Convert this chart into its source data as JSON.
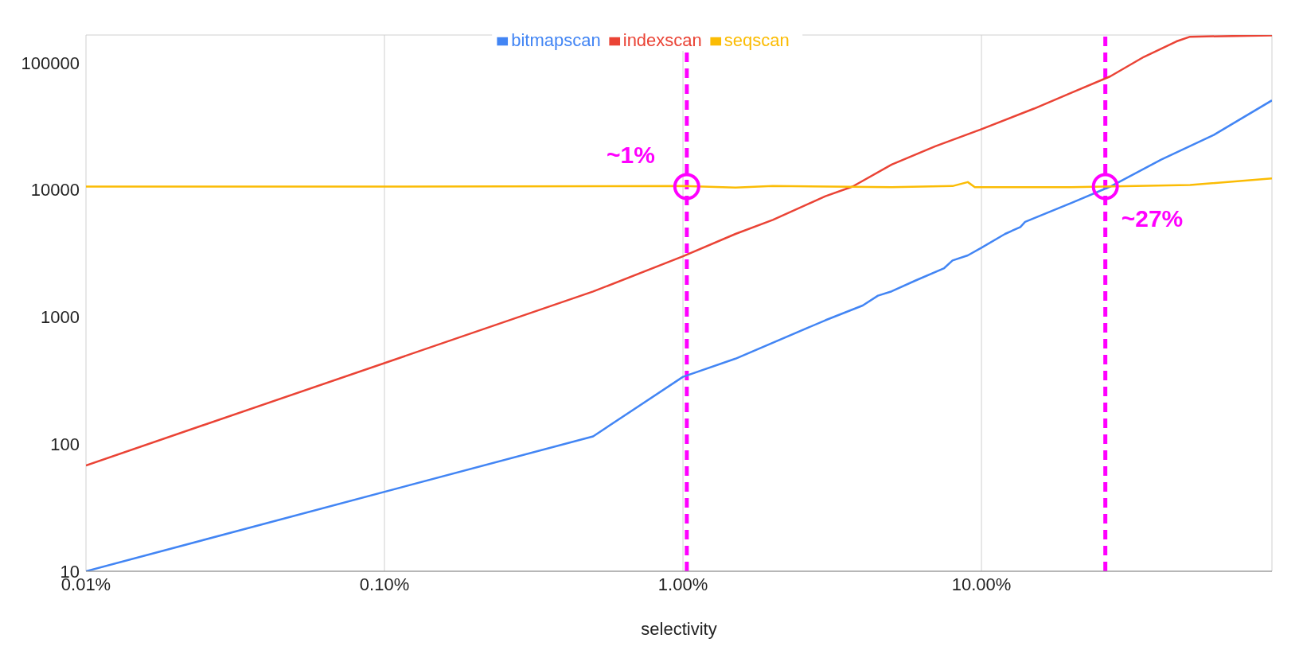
{
  "chart_data": {
    "type": "line",
    "xlabel": "selectivity",
    "log": "xy",
    "grid": true,
    "legend": "top",
    "marker": "none",
    "line_style": "solid",
    "xlim": [
      0.01,
      94
    ],
    "xticks": [
      {
        "value": 0.01,
        "label": "0.01%"
      },
      {
        "value": 0.1,
        "label": "0.10%"
      },
      {
        "value": 1,
        "label": "1.00%"
      },
      {
        "value": 10,
        "label": "10.00%"
      }
    ],
    "ylim": [
      10,
      165000
    ],
    "yticks": [
      10,
      100,
      1000,
      10000,
      100000
    ],
    "series": [
      {
        "name": "bitmapscan",
        "color": "#4285f4",
        "x": [
          0.01,
          0.5,
          1,
          1.5,
          3,
          4,
          4.5,
          5,
          6,
          7.5,
          8,
          9,
          10,
          12,
          13.5,
          14,
          20,
          27,
          40,
          60,
          94
        ],
        "values": [
          10,
          115,
          338,
          470,
          942,
          1230,
          1470,
          1590,
          1930,
          2420,
          2780,
          3050,
          3500,
          4500,
          5100,
          5600,
          7880,
          10600,
          17300,
          27000,
          50500
        ]
      },
      {
        "name": "indexscan",
        "color": "#ea4335",
        "x": [
          0.01,
          0.5,
          1,
          1.5,
          2,
          3,
          3.7,
          5,
          7,
          10,
          15,
          20,
          27,
          35,
          45,
          50,
          94
        ],
        "values": [
          68,
          1585,
          3000,
          4500,
          5800,
          8900,
          10600,
          15800,
          22000,
          30000,
          43500,
          58000,
          78000,
          111000,
          147000,
          160000,
          164000
        ]
      },
      {
        "name": "seqscan",
        "color": "#fbbc04",
        "x": [
          0.01,
          0.1,
          1,
          1.5,
          2,
          5,
          8,
          9,
          9.5,
          20,
          50,
          94
        ],
        "values": [
          10600,
          10600,
          10700,
          10400,
          10700,
          10500,
          10700,
          11500,
          10500,
          10500,
          10900,
          12300
        ]
      }
    ],
    "ref_lines": [
      {
        "axis": "x",
        "value": 1.03,
        "color": "#ff00ff",
        "line_style": "dashed"
      },
      {
        "axis": "x",
        "value": 26,
        "color": "#ff00ff",
        "line_style": "dashed"
      }
    ],
    "annotations": [
      {
        "text": "~1%",
        "x": 1.03,
        "y": 10600
      },
      {
        "text": "~27%",
        "x": 26,
        "y": 10600
      }
    ]
  }
}
